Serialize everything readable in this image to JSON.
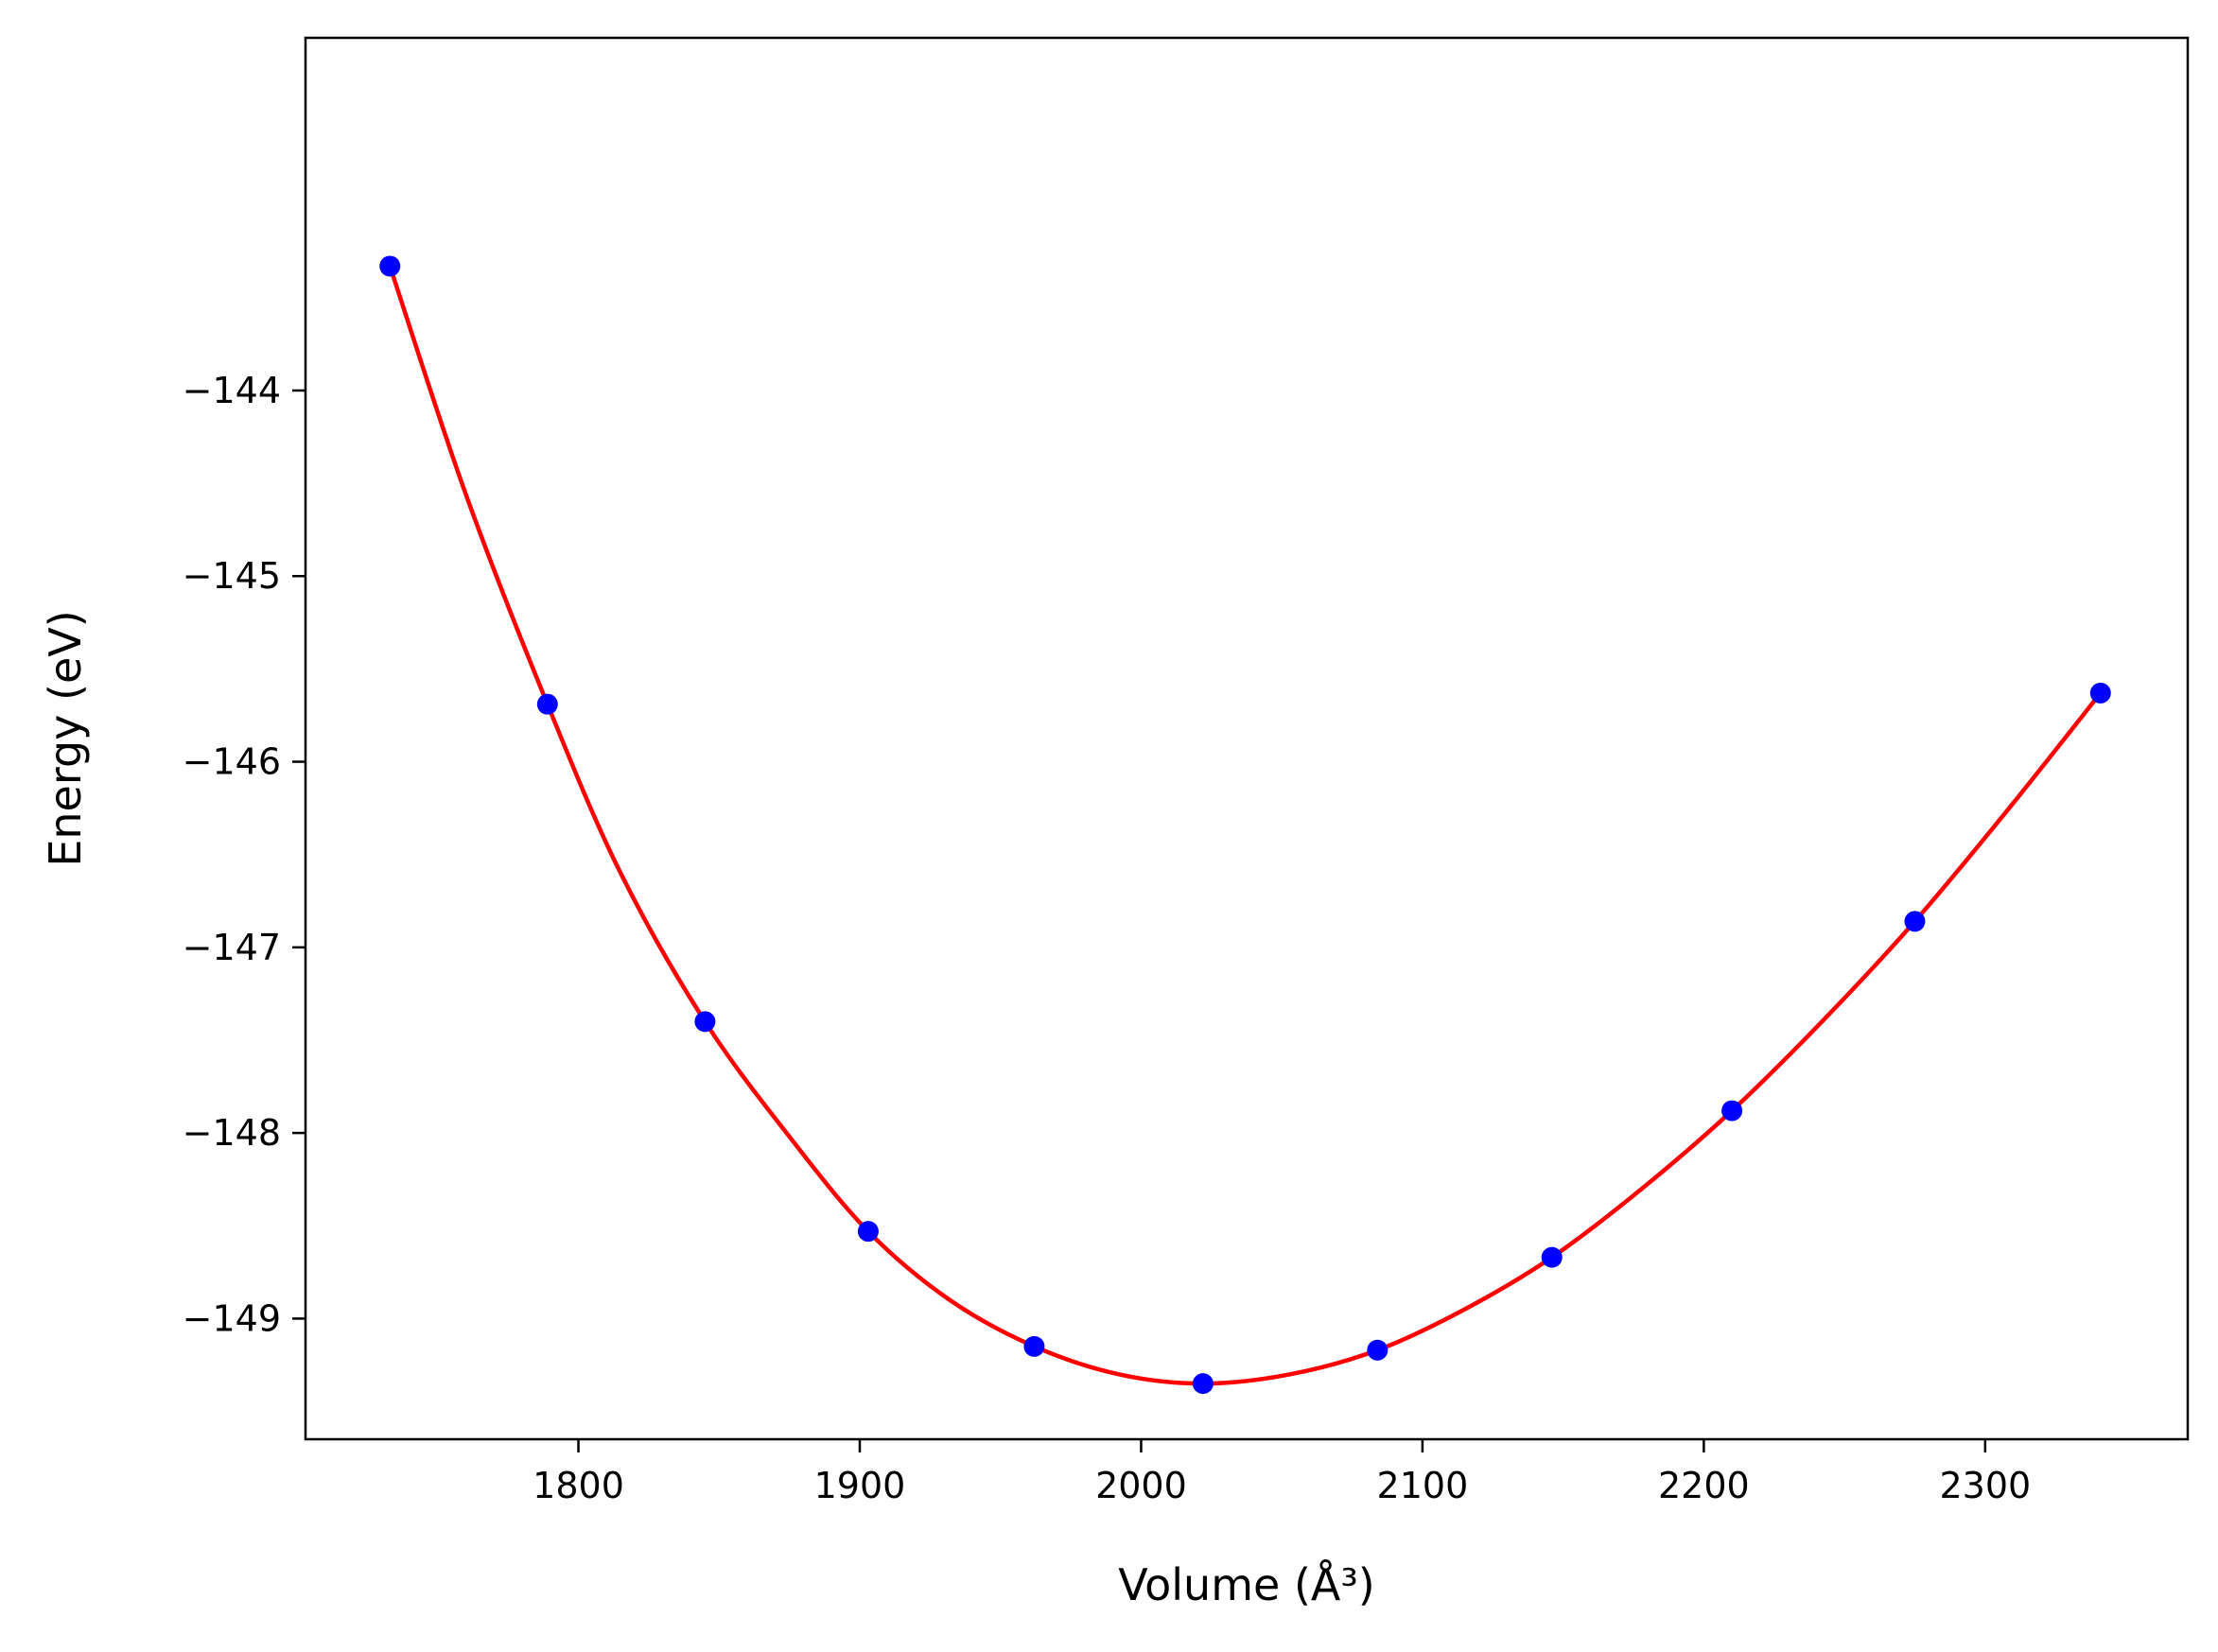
{
  "chart_data": {
    "type": "line",
    "xlabel": "Volume (Å³)",
    "ylabel": "Energy (eV)",
    "xlim": [
      1703,
      2372
    ],
    "ylim": [
      -149.65,
      -142.1
    ],
    "x_ticks": [
      1800,
      1900,
      2000,
      2100,
      2200,
      2300
    ],
    "x_tick_labels": [
      "1800",
      "1900",
      "2000",
      "2100",
      "2200",
      "2300"
    ],
    "y_ticks": [
      -144,
      -145,
      -146,
      -147,
      -148,
      -149
    ],
    "y_tick_labels": [
      "−144",
      "−145",
      "−146",
      "−147",
      "−148",
      "−149"
    ],
    "grid": false,
    "series": [
      {
        "kind": "scatter",
        "color": "#0000ff",
        "x": [
          1733,
          1789,
          1845,
          1903,
          1962,
          2022,
          2084,
          2146,
          2210,
          2275,
          2341
        ],
        "y": [
          -143.33,
          -145.69,
          -147.4,
          -148.53,
          -149.15,
          -149.35,
          -149.17,
          -148.67,
          -147.88,
          -146.86,
          -145.63
        ]
      },
      {
        "kind": "fit",
        "color": "#ff0000",
        "x": [
          1733,
          1760,
          1789,
          1815,
          1845,
          1875,
          1903,
          1932,
          1962,
          1992,
          2022,
          2053,
          2084,
          2115,
          2146,
          2178,
          2210,
          2242,
          2275,
          2308,
          2341
        ],
        "y": [
          -143.33,
          -144.56,
          -145.69,
          -146.6,
          -147.4,
          -148.02,
          -148.53,
          -148.9,
          -149.15,
          -149.3,
          -149.35,
          -149.3,
          -149.17,
          -148.95,
          -148.67,
          -148.3,
          -147.88,
          -147.4,
          -146.86,
          -146.26,
          -145.63
        ]
      }
    ]
  }
}
